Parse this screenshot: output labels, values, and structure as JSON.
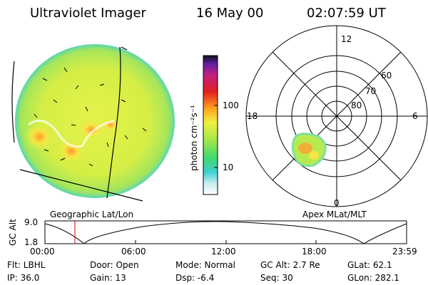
{
  "header": {
    "instrument": "Ultraviolet Imager",
    "date": "16 May 00",
    "time": "02:07:59 UT"
  },
  "colorbar": {
    "unit_label": "photon cm⁻²s⁻¹",
    "ticks": [
      "100",
      "10"
    ]
  },
  "polar_plot": {
    "mlt_labels": [
      "12",
      "18",
      "6",
      "0"
    ],
    "lat_labels": [
      "60",
      "70",
      "80"
    ]
  },
  "captions": {
    "left": "Geographic Lat/Lon",
    "right": "Apex MLat/MLT"
  },
  "alt_plot": {
    "ylabel": "GC Alt",
    "y_ticks": [
      "9.0",
      "1.8"
    ],
    "x_ticks": [
      "00:00",
      "06:00",
      "12:00",
      "18:00",
      "23:59"
    ]
  },
  "footer": {
    "row1": [
      {
        "label": "Flt: LBHL"
      },
      {
        "label": "Door: Open"
      },
      {
        "label": "Mode: Normal"
      },
      {
        "label": "GC Alt: 2.7 Re"
      },
      {
        "label": "GLat:   62.1"
      }
    ],
    "row2": [
      {
        "label": "IP: 36.0"
      },
      {
        "label": "Gain: 13"
      },
      {
        "label": "Dsp:   -6.4"
      },
      {
        "label": "Seq: 30"
      },
      {
        "label": "GLon: 282.1"
      }
    ]
  },
  "colors": {
    "background": "#ffffff",
    "disk_base": "#d8f048",
    "disk_edge": "#88e070",
    "hot_spot": "#ff9a2a",
    "cursor": "#cc0000"
  }
}
